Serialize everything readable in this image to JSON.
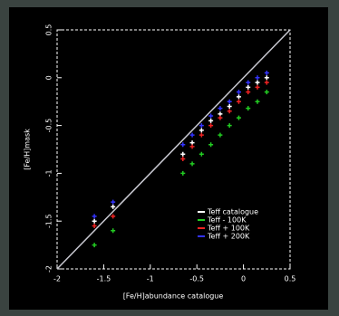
{
  "chart_data": {
    "type": "scatter",
    "x_label": "[Fe/H]abundance catalogue",
    "y_label": "[Fe/H]mask",
    "xlim": [
      -2,
      0.5
    ],
    "ylim": [
      -2,
      0.5
    ],
    "xticks": [
      -2,
      -1.5,
      -1,
      -0.5,
      0,
      0.5
    ],
    "yticks": [
      -2,
      -1.5,
      -1,
      -0.5,
      0,
      0.5
    ],
    "legend": "lower-right",
    "identity_line": {
      "x": [
        -2,
        0.5
      ],
      "y": [
        -2,
        0.5
      ],
      "color": "#c8c8d0"
    },
    "series": [
      {
        "name": "Teff catalogue",
        "color": "#ffffff",
        "x": [
          -1.6,
          -1.4,
          -0.65,
          -0.55,
          -0.45,
          -0.35,
          -0.25,
          -0.15,
          -0.05,
          0.05,
          0.15,
          0.25
        ],
        "values": [
          -1.5,
          -1.35,
          -0.8,
          -0.68,
          -0.55,
          -0.45,
          -0.38,
          -0.3,
          -0.2,
          -0.1,
          -0.05,
          0.0
        ]
      },
      {
        "name": "Teff - 100K",
        "color": "#22cc22",
        "x": [
          -1.6,
          -1.4,
          -0.65,
          -0.55,
          -0.45,
          -0.35,
          -0.25,
          -0.15,
          -0.05,
          0.05,
          0.15,
          0.25
        ],
        "values": [
          -1.75,
          -1.6,
          -1.0,
          -0.9,
          -0.8,
          -0.7,
          -0.6,
          -0.5,
          -0.42,
          -0.32,
          -0.25,
          -0.15
        ]
      },
      {
        "name": "Teff + 100K",
        "color": "#ee2222",
        "x": [
          -1.6,
          -1.4,
          -0.65,
          -0.55,
          -0.45,
          -0.35,
          -0.25,
          -0.15,
          -0.05,
          0.05,
          0.15,
          0.25
        ],
        "values": [
          -1.55,
          -1.45,
          -0.85,
          -0.72,
          -0.6,
          -0.5,
          -0.42,
          -0.35,
          -0.25,
          -0.15,
          -0.1,
          -0.05
        ]
      },
      {
        "name": "Teff + 200K",
        "color": "#3333ff",
        "x": [
          -1.6,
          -1.4,
          -0.65,
          -0.55,
          -0.45,
          -0.35,
          -0.25,
          -0.15,
          -0.05,
          0.05,
          0.15,
          0.25
        ],
        "values": [
          -1.45,
          -1.3,
          -0.7,
          -0.6,
          -0.5,
          -0.4,
          -0.32,
          -0.25,
          -0.15,
          -0.05,
          0.0,
          0.05
        ]
      }
    ]
  }
}
